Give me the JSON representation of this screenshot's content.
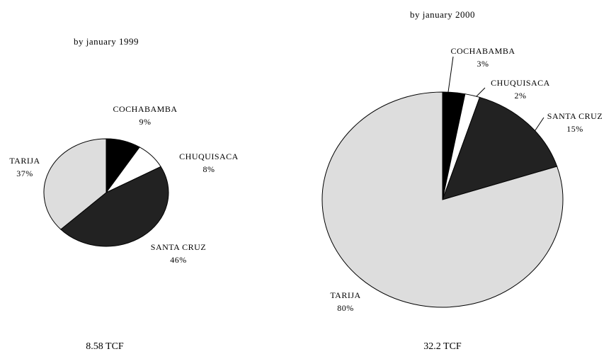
{
  "chart_data": [
    {
      "type": "pie",
      "title": "by january 1999",
      "caption": "8.58 TCF",
      "categories": [
        "COCHABAMBA",
        "CHUQUISACA",
        "SANTA CRUZ",
        "TARIJA"
      ],
      "values": [
        9,
        8,
        46,
        37
      ],
      "value_labels": [
        "9%",
        "8%",
        "46%",
        "37%"
      ],
      "colors": [
        "#000000",
        "#ffffff",
        "#222222",
        "#dddddd"
      ]
    },
    {
      "type": "pie",
      "title": "by january 2000",
      "caption": "32.2 TCF",
      "categories": [
        "COCHABAMBA",
        "CHUQUISACA",
        "SANTA CRUZ",
        "TARIJA"
      ],
      "values": [
        3,
        2,
        15,
        80
      ],
      "value_labels": [
        "3%",
        "2%",
        "15%",
        "80%"
      ],
      "colors": [
        "#000000",
        "#ffffff",
        "#222222",
        "#dddddd"
      ]
    }
  ]
}
